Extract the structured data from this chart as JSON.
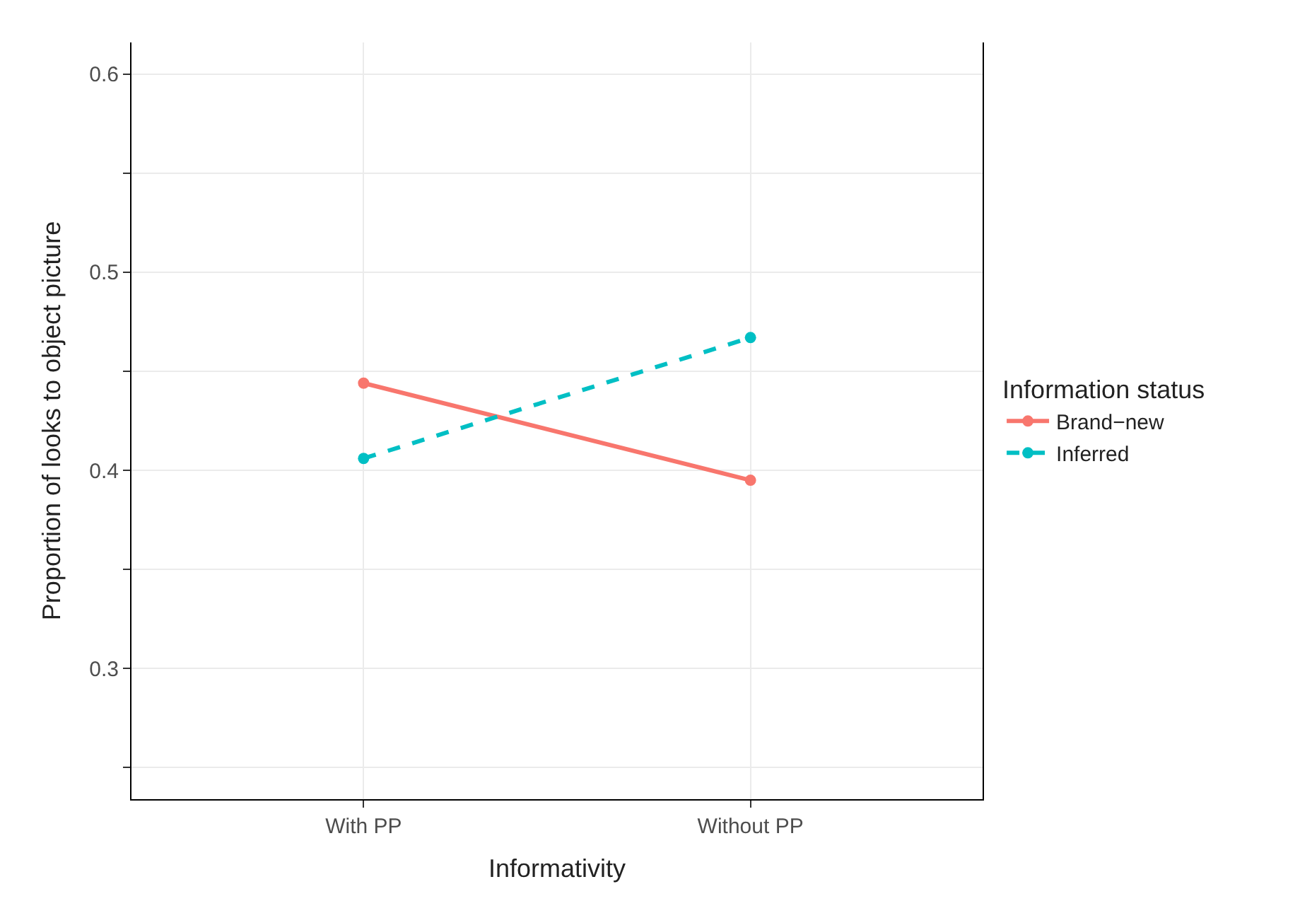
{
  "chart_data": {
    "type": "line",
    "xlabel": "Informativity",
    "ylabel": "Proportion of looks to object picture",
    "legend_title": "Information status",
    "categories": [
      "With PP",
      "Without PP"
    ],
    "series": [
      {
        "name": "Brand−new",
        "color": "#f8766d",
        "values": [
          0.444,
          0.395
        ],
        "line_style": "solid"
      },
      {
        "name": "Inferred",
        "color": "#00bfc4",
        "values": [
          0.406,
          0.467
        ],
        "line_style": "dashed"
      }
    ],
    "ylim": [
      0.234,
      0.616
    ],
    "yticks": [
      {
        "value": 0.25,
        "label": null
      },
      0.3,
      {
        "value": 0.35,
        "label": null
      },
      0.4,
      {
        "value": 0.45,
        "label": null
      },
      0.5,
      {
        "value": 0.55,
        "label": null
      },
      0.6
    ],
    "grid": true,
    "legend": "right",
    "marker": "circle"
  }
}
